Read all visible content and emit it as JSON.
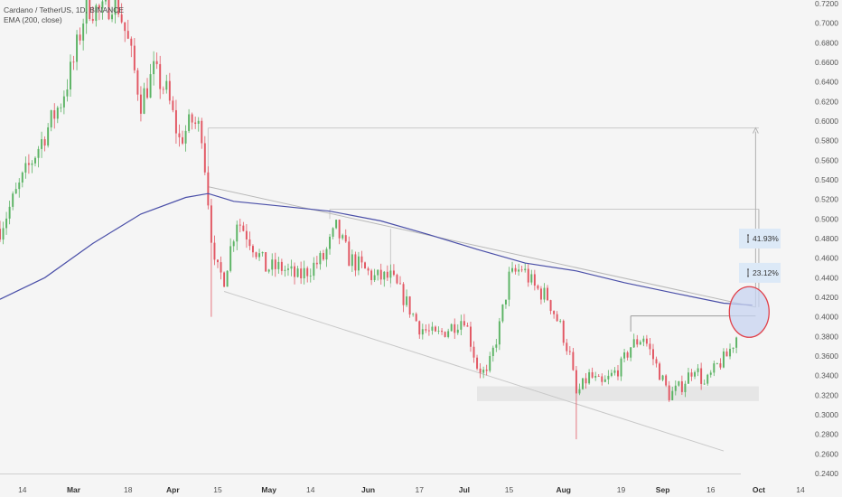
{
  "legend": {
    "symbol": "Cardano / TetherUS, 1D, BINANCE",
    "indicator": "EMA (200, close)"
  },
  "colors": {
    "up": "#5bb364",
    "down": "#e25763",
    "ema": "#4a4fa8",
    "grid_line": "#c9c9c9",
    "highlight_circle": "#e0404a",
    "highlight_fill": "#c7d3f0",
    "measure_box": "#dce9f7"
  },
  "chart_data": {
    "type": "candlestick",
    "y_axis": {
      "min": 0.24,
      "max": 0.72,
      "step": 0.02,
      "tick_labels": [
        "0.7200",
        "0.7000",
        "0.6800",
        "0.6600",
        "0.6400",
        "0.6200",
        "0.6000",
        "0.5800",
        "0.5600",
        "0.5400",
        "0.5200",
        "0.5000",
        "0.4800",
        "0.4600",
        "0.4400",
        "0.4200",
        "0.4000",
        "0.3800",
        "0.3600",
        "0.3400",
        "0.3200",
        "0.3000",
        "0.2800",
        "0.2600",
        "0.2400"
      ]
    },
    "x_axis": {
      "start": "2024-02-07",
      "end": "2024-10-14",
      "tick_labels": [
        {
          "date": "2024-02-14",
          "label": "14",
          "bold": false
        },
        {
          "date": "2024-03-01",
          "label": "Mar",
          "bold": true
        },
        {
          "date": "2024-03-18",
          "label": "18",
          "bold": false
        },
        {
          "date": "2024-04-01",
          "label": "Apr",
          "bold": true
        },
        {
          "date": "2024-04-15",
          "label": "15",
          "bold": false
        },
        {
          "date": "2024-05-01",
          "label": "May",
          "bold": true
        },
        {
          "date": "2024-05-14",
          "label": "14",
          "bold": false
        },
        {
          "date": "2024-06-01",
          "label": "Jun",
          "bold": true
        },
        {
          "date": "2024-06-17",
          "label": "17",
          "bold": false
        },
        {
          "date": "2024-07-01",
          "label": "Jul",
          "bold": true
        },
        {
          "date": "2024-07-15",
          "label": "15",
          "bold": false
        },
        {
          "date": "2024-08-01",
          "label": "Aug",
          "bold": true
        },
        {
          "date": "2024-08-19",
          "label": "19",
          "bold": false
        },
        {
          "date": "2024-09-01",
          "label": "Sep",
          "bold": true
        },
        {
          "date": "2024-09-16",
          "label": "16",
          "bold": false
        },
        {
          "date": "2024-10-01",
          "label": "Oct",
          "bold": true
        },
        {
          "date": "2024-10-14",
          "label": "14",
          "bold": false
        }
      ]
    },
    "price_path": [
      [
        "2024-02-07",
        0.49
      ],
      [
        "2024-02-14",
        0.54
      ],
      [
        "2024-02-20",
        0.58
      ],
      [
        "2024-02-26",
        0.62
      ],
      [
        "2024-03-01",
        0.66
      ],
      [
        "2024-03-05",
        0.72
      ],
      [
        "2024-03-10",
        0.71
      ],
      [
        "2024-03-14",
        0.73
      ],
      [
        "2024-03-18",
        0.68
      ],
      [
        "2024-03-22",
        0.62
      ],
      [
        "2024-03-26",
        0.65
      ],
      [
        "2024-03-30",
        0.63
      ],
      [
        "2024-04-03",
        0.58
      ],
      [
        "2024-04-07",
        0.6
      ],
      [
        "2024-04-10",
        0.59
      ],
      [
        "2024-04-12",
        0.52
      ],
      [
        "2024-04-14",
        0.45
      ],
      [
        "2024-04-17",
        0.44
      ],
      [
        "2024-04-21",
        0.5
      ],
      [
        "2024-04-25",
        0.48
      ],
      [
        "2024-04-30",
        0.45
      ],
      [
        "2024-05-05",
        0.45
      ],
      [
        "2024-05-10",
        0.44
      ],
      [
        "2024-05-14",
        0.45
      ],
      [
        "2024-05-18",
        0.46
      ],
      [
        "2024-05-22",
        0.49
      ],
      [
        "2024-05-26",
        0.46
      ],
      [
        "2024-05-30",
        0.45
      ],
      [
        "2024-06-03",
        0.44
      ],
      [
        "2024-06-08",
        0.44
      ],
      [
        "2024-06-12",
        0.42
      ],
      [
        "2024-06-17",
        0.39
      ],
      [
        "2024-06-22",
        0.38
      ],
      [
        "2024-06-27",
        0.39
      ],
      [
        "2024-07-01",
        0.4
      ],
      [
        "2024-07-05",
        0.35
      ],
      [
        "2024-07-08",
        0.34
      ],
      [
        "2024-07-12",
        0.39
      ],
      [
        "2024-07-15",
        0.44
      ],
      [
        "2024-07-19",
        0.45
      ],
      [
        "2024-07-23",
        0.43
      ],
      [
        "2024-07-27",
        0.42
      ],
      [
        "2024-07-31",
        0.39
      ],
      [
        "2024-08-03",
        0.36
      ],
      [
        "2024-08-05",
        0.32
      ],
      [
        "2024-08-09",
        0.34
      ],
      [
        "2024-08-13",
        0.33
      ],
      [
        "2024-08-19",
        0.35
      ],
      [
        "2024-08-22",
        0.37
      ],
      [
        "2024-08-26",
        0.38
      ],
      [
        "2024-08-30",
        0.35
      ],
      [
        "2024-09-03",
        0.32
      ],
      [
        "2024-09-07",
        0.33
      ],
      [
        "2024-09-11",
        0.35
      ],
      [
        "2024-09-14",
        0.33
      ],
      [
        "2024-09-18",
        0.35
      ],
      [
        "2024-09-21",
        0.36
      ],
      [
        "2024-09-24",
        0.38
      ]
    ],
    "ema_200": [
      [
        "2024-02-07",
        0.418
      ],
      [
        "2024-02-21",
        0.44
      ],
      [
        "2024-03-07",
        0.475
      ],
      [
        "2024-03-22",
        0.505
      ],
      [
        "2024-04-05",
        0.522
      ],
      [
        "2024-04-12",
        0.526
      ],
      [
        "2024-04-20",
        0.518
      ],
      [
        "2024-05-05",
        0.513
      ],
      [
        "2024-05-20",
        0.508
      ],
      [
        "2024-06-05",
        0.498
      ],
      [
        "2024-06-20",
        0.484
      ],
      [
        "2024-07-05",
        0.469
      ],
      [
        "2024-07-20",
        0.455
      ],
      [
        "2024-08-05",
        0.447
      ],
      [
        "2024-08-20",
        0.435
      ],
      [
        "2024-09-05",
        0.424
      ],
      [
        "2024-09-20",
        0.414
      ],
      [
        "2024-09-29",
        0.412
      ]
    ],
    "drawings": {
      "top_box": {
        "from": "2024-04-12",
        "to": "2024-10-01",
        "price": 0.593
      },
      "mid_box": {
        "from": "2024-05-20",
        "to": "2024-10-01",
        "price": 0.51
      },
      "breakout_level": {
        "from": "2024-08-22",
        "to": "2024-09-30",
        "price": 0.401
      },
      "support_zone": {
        "from": "2024-07-05",
        "to": "2024-10-01",
        "low": 0.314,
        "high": 0.329
      },
      "upper_trendline": {
        "from": [
          "2024-04-12",
          0.533
        ],
        "to": [
          "2024-09-30",
          0.41
        ]
      },
      "lower_trendline": {
        "from": [
          "2024-04-17",
          0.426
        ],
        "to": [
          "2024-09-20",
          0.263
        ]
      },
      "measure_arrow": {
        "date": "2024-09-30",
        "from": 0.41,
        "to": 0.593
      },
      "highlight_circle": {
        "date": "2024-09-28",
        "price": 0.405
      }
    },
    "annotations": [
      {
        "label": "41.93%",
        "price": 0.48
      },
      {
        "label": "23.12%",
        "price": 0.445
      }
    ]
  }
}
